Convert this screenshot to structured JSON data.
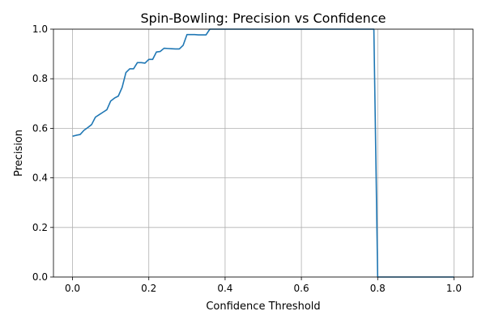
{
  "chart_data": {
    "type": "line",
    "title": "Spin-Bowling: Precision vs Confidence",
    "xlabel": "Confidence Threshold",
    "ylabel": "Precision",
    "xlim": [
      -0.05,
      1.05
    ],
    "ylim": [
      0.0,
      1.0
    ],
    "xticks": [
      {
        "value": 0.0,
        "label": "0.0"
      },
      {
        "value": 0.2,
        "label": "0.2"
      },
      {
        "value": 0.4,
        "label": "0.4"
      },
      {
        "value": 0.6,
        "label": "0.6"
      },
      {
        "value": 0.8,
        "label": "0.8"
      },
      {
        "value": 1.0,
        "label": "1.0"
      }
    ],
    "yticks": [
      {
        "value": 0.0,
        "label": "0.0"
      },
      {
        "value": 0.2,
        "label": "0.2"
      },
      {
        "value": 0.4,
        "label": "0.4"
      },
      {
        "value": 0.6,
        "label": "0.6"
      },
      {
        "value": 0.8,
        "label": "0.8"
      },
      {
        "value": 1.0,
        "label": "1.0"
      }
    ],
    "grid": true,
    "series": [
      {
        "color": "#1f77b4",
        "x": [
          0.0,
          0.01,
          0.02,
          0.03,
          0.04,
          0.05,
          0.06,
          0.07,
          0.08,
          0.09,
          0.1,
          0.11,
          0.12,
          0.13,
          0.14,
          0.15,
          0.16,
          0.17,
          0.18,
          0.19,
          0.2,
          0.21,
          0.22,
          0.23,
          0.24,
          0.25,
          0.26,
          0.27,
          0.28,
          0.29,
          0.3,
          0.31,
          0.32,
          0.33,
          0.34,
          0.35,
          0.36,
          0.37,
          0.38,
          0.39,
          0.4,
          0.5,
          0.6,
          0.7,
          0.78,
          0.79,
          0.8,
          0.81,
          0.9,
          1.0
        ],
        "y": [
          0.568,
          0.572,
          0.575,
          0.592,
          0.603,
          0.615,
          0.645,
          0.655,
          0.665,
          0.675,
          0.71,
          0.722,
          0.73,
          0.765,
          0.825,
          0.84,
          0.84,
          0.865,
          0.865,
          0.863,
          0.878,
          0.878,
          0.908,
          0.91,
          0.923,
          0.922,
          0.921,
          0.92,
          0.92,
          0.935,
          0.978,
          0.978,
          0.978,
          0.977,
          0.977,
          0.977,
          1.0,
          1.0,
          1.0,
          1.0,
          1.0,
          1.0,
          1.0,
          1.0,
          1.0,
          1.0,
          0.0,
          0.0,
          0.0,
          0.0
        ]
      }
    ]
  }
}
